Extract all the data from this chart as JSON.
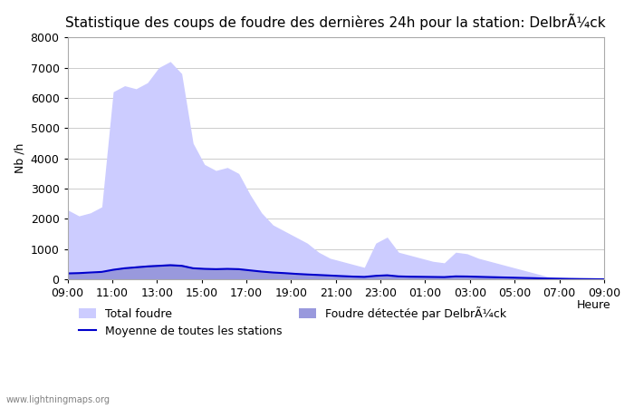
{
  "title": "Statistique des coups de foudre des dernières 24h pour la station: DelbrÃ¼ck",
  "ylabel": "Nb /h",
  "xlabel": "Heure",
  "watermark": "www.lightningmaps.org",
  "legend_total": "Total foudre",
  "legend_moyenne": "Moyenne de toutes les stations",
  "legend_detected": "Foudre détectée par DelbrÃ¼ck",
  "x_ticks": [
    "09:00",
    "11:00",
    "13:00",
    "15:00",
    "17:00",
    "19:00",
    "21:00",
    "23:00",
    "01:00",
    "03:00",
    "05:00",
    "07:00",
    "09:00"
  ],
  "ylim": [
    0,
    8000
  ],
  "yticks": [
    0,
    1000,
    2000,
    3000,
    4000,
    5000,
    6000,
    7000,
    8000
  ],
  "total_foudre": [
    2300,
    2100,
    2200,
    2400,
    6200,
    6400,
    6300,
    6500,
    7000,
    7200,
    6800,
    4500,
    3800,
    3600,
    3700,
    3500,
    2800,
    2200,
    1800,
    1600,
    1400,
    1200,
    900,
    700,
    600,
    500,
    400,
    1200,
    1400,
    900,
    800,
    700,
    600,
    550,
    900,
    850,
    700,
    600,
    500,
    400,
    300,
    200,
    100,
    80,
    60,
    50,
    40,
    30
  ],
  "foudre_detectee": [
    200,
    210,
    220,
    240,
    350,
    400,
    450,
    480,
    500,
    520,
    500,
    400,
    380,
    360,
    380,
    360,
    320,
    280,
    250,
    230,
    200,
    180,
    160,
    140,
    120,
    100,
    90,
    130,
    150,
    110,
    100,
    95,
    90,
    85,
    110,
    105,
    95,
    85,
    75,
    65,
    55,
    45,
    35,
    28,
    22,
    18,
    14,
    10
  ],
  "moyenne": [
    200,
    210,
    230,
    250,
    320,
    370,
    400,
    430,
    450,
    470,
    450,
    370,
    350,
    340,
    350,
    340,
    300,
    260,
    230,
    210,
    185,
    165,
    148,
    130,
    112,
    95,
    85,
    120,
    138,
    102,
    92,
    88,
    83,
    78,
    102,
    98,
    88,
    78,
    69,
    60,
    50,
    41,
    30,
    24,
    18,
    14,
    10,
    6
  ],
  "total_foudre_color": "#ccccff",
  "foudre_detectee_color": "#9999dd",
  "moyenne_color": "#0000cc",
  "background_color": "#ffffff",
  "plot_bg_color": "#ffffff",
  "grid_color": "#cccccc",
  "title_fontsize": 11,
  "tick_fontsize": 9,
  "label_fontsize": 9
}
